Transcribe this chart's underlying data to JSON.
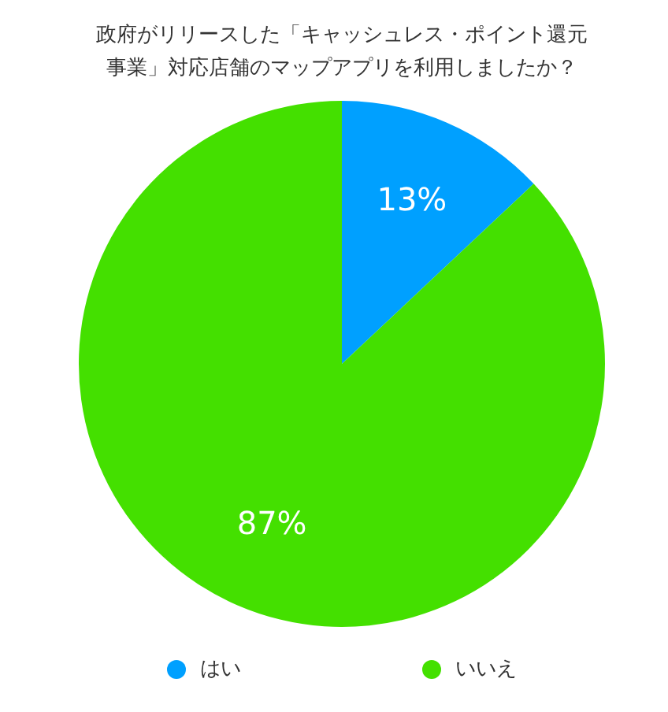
{
  "chart_data": {
    "type": "pie",
    "title": "政府がリリースした「キャッシュレス・ポイント還元事業」対応店舗のマップアプリを利用しましたか？",
    "categories": [
      "はい",
      "いいえ"
    ],
    "values": [
      13,
      87
    ],
    "colors": [
      "#00a0ff",
      "#44e000"
    ],
    "value_labels": [
      "13%",
      "87%"
    ],
    "legend": "bottom"
  }
}
